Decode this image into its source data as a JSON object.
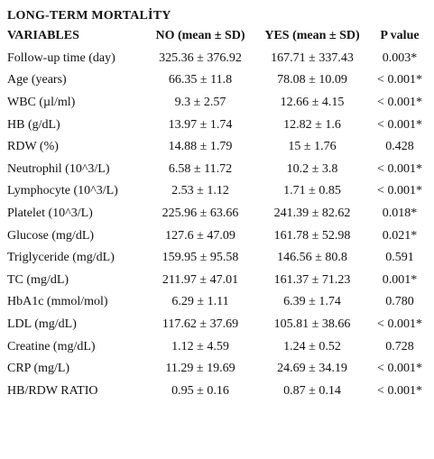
{
  "title": "LONG-TERM MORTALİTY",
  "headers": {
    "variables": "VARIABLES",
    "no": "NO (mean ± SD)",
    "yes": "YES (mean ± SD)",
    "p": "P value"
  },
  "rows": [
    {
      "variable": "Follow-up time (day)",
      "no": "325.36 ± 376.92",
      "yes": "167.71 ± 337.43",
      "p": "0.003*"
    },
    {
      "variable": "Age (years)",
      "no": "66.35 ± 11.8",
      "yes": "78.08 ± 10.09",
      "p": "< 0.001*"
    },
    {
      "variable": "WBC (µl/ml)",
      "no": "9.3 ± 2.57",
      "yes": "12.66 ± 4.15",
      "p": "< 0.001*"
    },
    {
      "variable": "HB (g/dL)",
      "no": "13.97 ± 1.74",
      "yes": "12.82 ± 1.6",
      "p": "< 0.001*"
    },
    {
      "variable": "RDW (%)",
      "no": "14.88 ± 1.79",
      "yes": "15 ± 1.76",
      "p": "0.428"
    },
    {
      "variable": "Neutrophil (10^3/L)",
      "no": "6.58 ± 11.72",
      "yes": "10.2 ± 3.8",
      "p": "< 0.001*"
    },
    {
      "variable": "Lymphocyte (10^3/L)",
      "no": "2.53 ± 1.12",
      "yes": "1.71 ± 0.85",
      "p": "< 0.001*"
    },
    {
      "variable": "Platelet (10^3/L)",
      "no": "225.96 ± 63.66",
      "yes": "241.39 ± 82.62",
      "p": "0.018*"
    },
    {
      "variable": "Glucose (mg/dL)",
      "no": "127.6 ± 47.09",
      "yes": "161.78 ± 52.98",
      "p": "0.021*"
    },
    {
      "variable": "Triglyceride (mg/dL)",
      "no": "159.95 ± 95.58",
      "yes": "146.56 ± 80.8",
      "p": "0.591"
    },
    {
      "variable": "TC (mg/dL)",
      "no": "211.97 ± 47.01",
      "yes": "161.37 ± 71.23",
      "p": "0.001*"
    },
    {
      "variable": "HbA1c (mmol/mol)",
      "no": "6.29 ± 1.11",
      "yes": "6.39 ± 1.74",
      "p": "0.780"
    },
    {
      "variable": "LDL (mg/dL)",
      "no": "117.62 ± 37.69",
      "yes": "105.81 ± 38.66",
      "p": "< 0.001*"
    },
    {
      "variable": "Creatine (mg/dL)",
      "no": "1.12 ± 4.59",
      "yes": "1.24 ± 0.52",
      "p": "0.728"
    },
    {
      "variable": "CRP (mg/L)",
      "no": "11.29 ± 19.69",
      "yes": "24.69 ± 34.19",
      "p": "< 0.001*"
    },
    {
      "variable": "HB/RDW RATIO",
      "no": "0.95 ± 0.16",
      "yes": "0.87 ± 0.14",
      "p": "< 0.001*"
    }
  ]
}
